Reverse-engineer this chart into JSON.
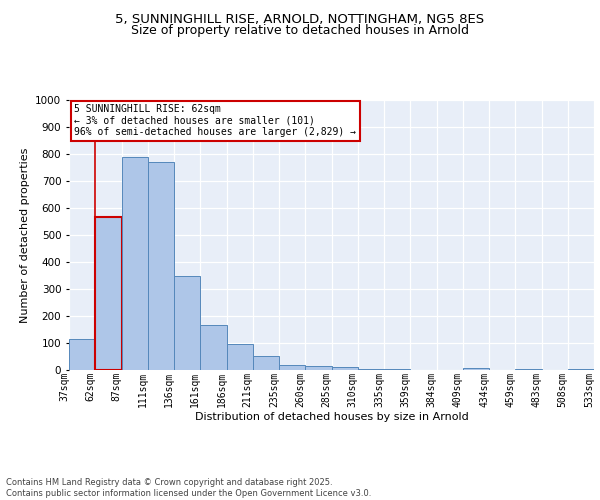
{
  "title1": "5, SUNNINGHILL RISE, ARNOLD, NOTTINGHAM, NG5 8ES",
  "title2": "Size of property relative to detached houses in Arnold",
  "xlabel": "Distribution of detached houses by size in Arnold",
  "ylabel": "Number of detached properties",
  "bar_values": [
    115,
    565,
    790,
    770,
    350,
    165,
    97,
    52,
    20,
    13,
    10,
    5,
    2,
    0,
    0,
    8,
    0,
    5,
    0,
    5
  ],
  "bar_labels": [
    "37sqm",
    "62sqm",
    "87sqm",
    "111sqm",
    "136sqm",
    "161sqm",
    "186sqm",
    "211sqm",
    "235sqm",
    "260sqm",
    "285sqm",
    "310sqm",
    "335sqm",
    "359sqm",
    "384sqm",
    "409sqm",
    "434sqm",
    "459sqm",
    "483sqm",
    "508sqm",
    "533sqm"
  ],
  "bar_color": "#aec6e8",
  "bar_edge_color": "#5588bb",
  "highlight_bar_index": 1,
  "highlight_bar_edge_color": "#cc0000",
  "annotation_text": "5 SUNNINGHILL RISE: 62sqm\n← 3% of detached houses are smaller (101)\n96% of semi-detached houses are larger (2,829) →",
  "annotation_box_color": "#ffffff",
  "annotation_box_edge_color": "#cc0000",
  "background_color": "#e8eef8",
  "grid_color": "#ffffff",
  "ylim": [
    0,
    1000
  ],
  "yticks": [
    0,
    100,
    200,
    300,
    400,
    500,
    600,
    700,
    800,
    900,
    1000
  ],
  "footer_text": "Contains HM Land Registry data © Crown copyright and database right 2025.\nContains public sector information licensed under the Open Government Licence v3.0.",
  "title_fontsize": 9.5,
  "subtitle_fontsize": 9,
  "axis_fontsize": 8,
  "tick_fontsize": 7,
  "footer_fontsize": 6
}
